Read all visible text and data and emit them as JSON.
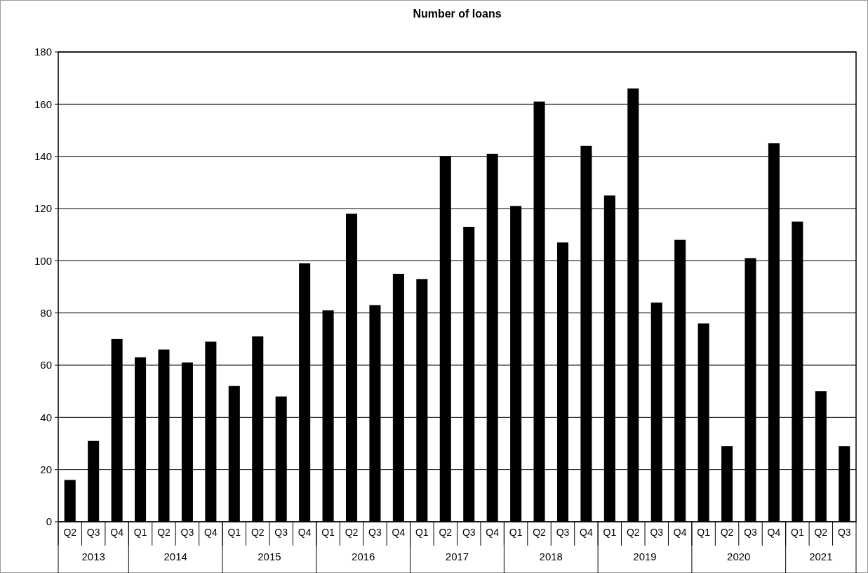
{
  "chart_data": {
    "type": "bar",
    "title": "Number of loans",
    "categories": [
      "Q2",
      "Q3",
      "Q4",
      "Q1",
      "Q2",
      "Q3",
      "Q4",
      "Q1",
      "Q2",
      "Q3",
      "Q4",
      "Q1",
      "Q2",
      "Q3",
      "Q4",
      "Q1",
      "Q2",
      "Q3",
      "Q4",
      "Q1",
      "Q2",
      "Q3",
      "Q4",
      "Q1",
      "Q2",
      "Q3",
      "Q4",
      "Q1",
      "Q2",
      "Q3",
      "Q4",
      "Q1",
      "Q2",
      "Q3"
    ],
    "values": [
      16,
      31,
      70,
      63,
      66,
      61,
      69,
      52,
      71,
      48,
      99,
      81,
      118,
      83,
      95,
      93,
      140,
      113,
      141,
      121,
      161,
      107,
      144,
      125,
      166,
      84,
      108,
      76,
      29,
      101,
      145,
      115,
      50,
      29
    ],
    "color": "#000000",
    "ylim": [
      0,
      180
    ],
    "yticks": [
      0,
      20,
      40,
      60,
      80,
      100,
      120,
      140,
      160,
      180
    ],
    "grid": "y",
    "annotations": [
      "2013",
      "2014",
      "2015",
      "2016",
      "2017",
      "2018",
      "2019",
      "2020",
      "2021"
    ]
  }
}
